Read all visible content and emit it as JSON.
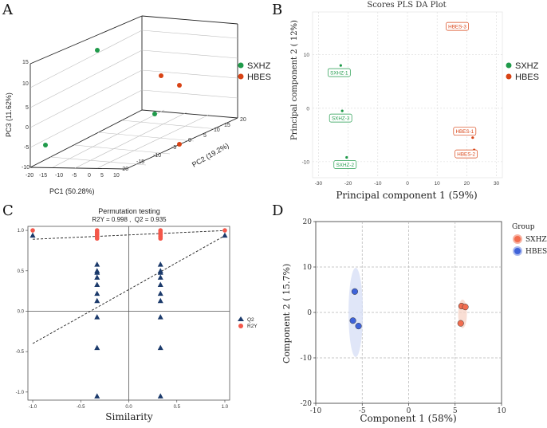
{
  "panels": [
    "A",
    "B",
    "C",
    "D"
  ],
  "colors": {
    "sxhz": "#1f9a4a",
    "hbes": "#d84315",
    "q2": "#1b3a6b",
    "r2y": "#f4574a",
    "d_sxhz": "#f26d4f",
    "d_hbes": "#3f63d9",
    "d_ell_sxhz": "#f7d3c6",
    "d_ell_hbes": "#d6def5"
  },
  "chart_data": [
    {
      "panel": "A",
      "type": "scatter3d",
      "title": "",
      "xlabel": "PC1 (50.28%)",
      "ylabel": "PC2 (19.2%)",
      "zlabel": "PC3 (11.62%)",
      "x_ticks": [
        "-20",
        "-15",
        "-10",
        "-5",
        "0",
        "5",
        "10",
        "15"
      ],
      "y_ticks": [
        "-20",
        "-15",
        "-10",
        "-5",
        "0",
        "5",
        "10",
        "15",
        "20"
      ],
      "z_ticks": [
        "-10",
        "-5",
        "0",
        "5",
        "10",
        "15"
      ],
      "legend": [
        {
          "name": "SXHZ",
          "color": "#1f9a4a"
        },
        {
          "name": "HBES",
          "color": "#d84315"
        }
      ],
      "series": [
        {
          "name": "SXHZ",
          "points": [
            [
              -17,
              0,
              -3
            ],
            [
              0,
              14,
              16
            ],
            [
              12,
              12,
              1
            ]
          ]
        },
        {
          "name": "HBES",
          "points": [
            [
              12,
              -8,
              -6
            ],
            [
              10,
              10,
              10
            ],
            [
              13,
              10,
              8
            ]
          ]
        }
      ]
    },
    {
      "panel": "B",
      "type": "scatter",
      "title": "Scores PLS DA Plot",
      "xlabel": "Principal component 1 (59%)",
      "ylabel": "Principal component 2 ( 12%)",
      "xlim": [
        -32,
        32
      ],
      "ylim": [
        -13,
        18
      ],
      "x_ticks": [
        -30,
        -20,
        -10,
        0,
        10,
        20,
        30
      ],
      "y_ticks": [
        -10,
        0,
        10
      ],
      "legend": [
        {
          "name": "SXHZ",
          "color": "#1f9a4a"
        },
        {
          "name": "HBES",
          "color": "#d84315"
        }
      ],
      "points": [
        {
          "label": "SXHZ-1",
          "group": "SXHZ",
          "x": -22.5,
          "y": 8.0
        },
        {
          "label": "SXHZ-3",
          "group": "SXHZ",
          "x": -22.0,
          "y": -0.5
        },
        {
          "label": "SXHZ-2",
          "group": "SXHZ",
          "x": -20.5,
          "y": -9.2
        },
        {
          "label": "HBES-3",
          "group": "HBES",
          "x": 19.5,
          "y": 15.0
        },
        {
          "label": "HBES-1",
          "group": "HBES",
          "x": 22.0,
          "y": -5.5
        },
        {
          "label": "HBES-2",
          "group": "HBES",
          "x": 22.5,
          "y": -7.8
        }
      ]
    },
    {
      "panel": "C",
      "type": "scatter",
      "title": "Permutation testing",
      "subtitle": "R2Y = 0.998 ,  Q2 = 0.935",
      "xlabel": "Similarity",
      "ylabel": "",
      "xlim": [
        -1.05,
        1.05
      ],
      "ylim": [
        -1.1,
        1.05
      ],
      "x_ticks": [
        "-1.0",
        "-0.5",
        "0.0",
        "0.5",
        "1.0"
      ],
      "y_ticks": [
        "1.0",
        "0.5",
        "0.0",
        "-0.5",
        "-1.0"
      ],
      "legend": [
        {
          "name": "Q2",
          "color": "#1b3a6b",
          "marker": "triangle"
        },
        {
          "name": "R2Y",
          "color": "#f4574a",
          "marker": "circle"
        }
      ],
      "series": [
        {
          "name": "R2Y",
          "x": [
            -1.0,
            -0.33,
            -0.33,
            -0.33,
            -0.33,
            -0.33,
            -0.33,
            -0.33,
            0.33,
            0.33,
            0.33,
            0.33,
            0.33,
            0.33,
            0.33,
            1.0
          ],
          "y": [
            1.0,
            1.0,
            0.98,
            0.96,
            0.95,
            0.93,
            0.92,
            0.9,
            1.0,
            0.98,
            0.96,
            0.95,
            0.93,
            0.92,
            0.9,
            1.0
          ]
        },
        {
          "name": "Q2",
          "x": [
            -1.0,
            -0.33,
            -0.33,
            -0.33,
            -0.33,
            -0.33,
            -0.33,
            -0.33,
            -0.33,
            -0.33,
            -0.33,
            0.33,
            0.33,
            0.33,
            0.33,
            0.33,
            0.33,
            0.33,
            0.33,
            0.33,
            0.33,
            1.0
          ],
          "y": [
            0.94,
            0.58,
            0.48,
            0.42,
            0.33,
            0.22,
            0.13,
            -0.07,
            -0.45,
            -1.05,
            0.5,
            0.58,
            0.48,
            0.42,
            0.33,
            0.22,
            0.13,
            -0.07,
            -0.45,
            -1.05,
            0.5,
            0.94
          ]
        }
      ],
      "lines": [
        {
          "name": "R2Y",
          "from": [
            -1.0,
            0.89
          ],
          "to": [
            1.0,
            0.998
          ]
        },
        {
          "name": "Q2",
          "from": [
            -1.0,
            -0.4
          ],
          "to": [
            1.0,
            0.935
          ]
        }
      ]
    },
    {
      "panel": "D",
      "type": "scatter",
      "title": "",
      "xlabel": "Component 1 (58%)",
      "ylabel": "Component 2 ( 15.7%)",
      "xlim": [
        -10,
        10
      ],
      "ylim": [
        -20,
        20
      ],
      "x_ticks": [
        -10,
        -5,
        0,
        5,
        10
      ],
      "y_ticks": [
        -20,
        -10,
        0,
        10,
        20
      ],
      "legend_title": "Group",
      "legend": [
        {
          "name": "SXHZ",
          "color": "#f26d4f"
        },
        {
          "name": "HBES",
          "color": "#3f63d9"
        }
      ],
      "series": [
        {
          "name": "SXHZ",
          "x": [
            5.7,
            6.1,
            5.6
          ],
          "y": [
            1.4,
            1.2,
            -2.4
          ]
        },
        {
          "name": "HBES",
          "x": [
            -5.8,
            -6.0,
            -5.4
          ],
          "y": [
            4.6,
            -1.8,
            -3.0
          ]
        }
      ]
    }
  ]
}
